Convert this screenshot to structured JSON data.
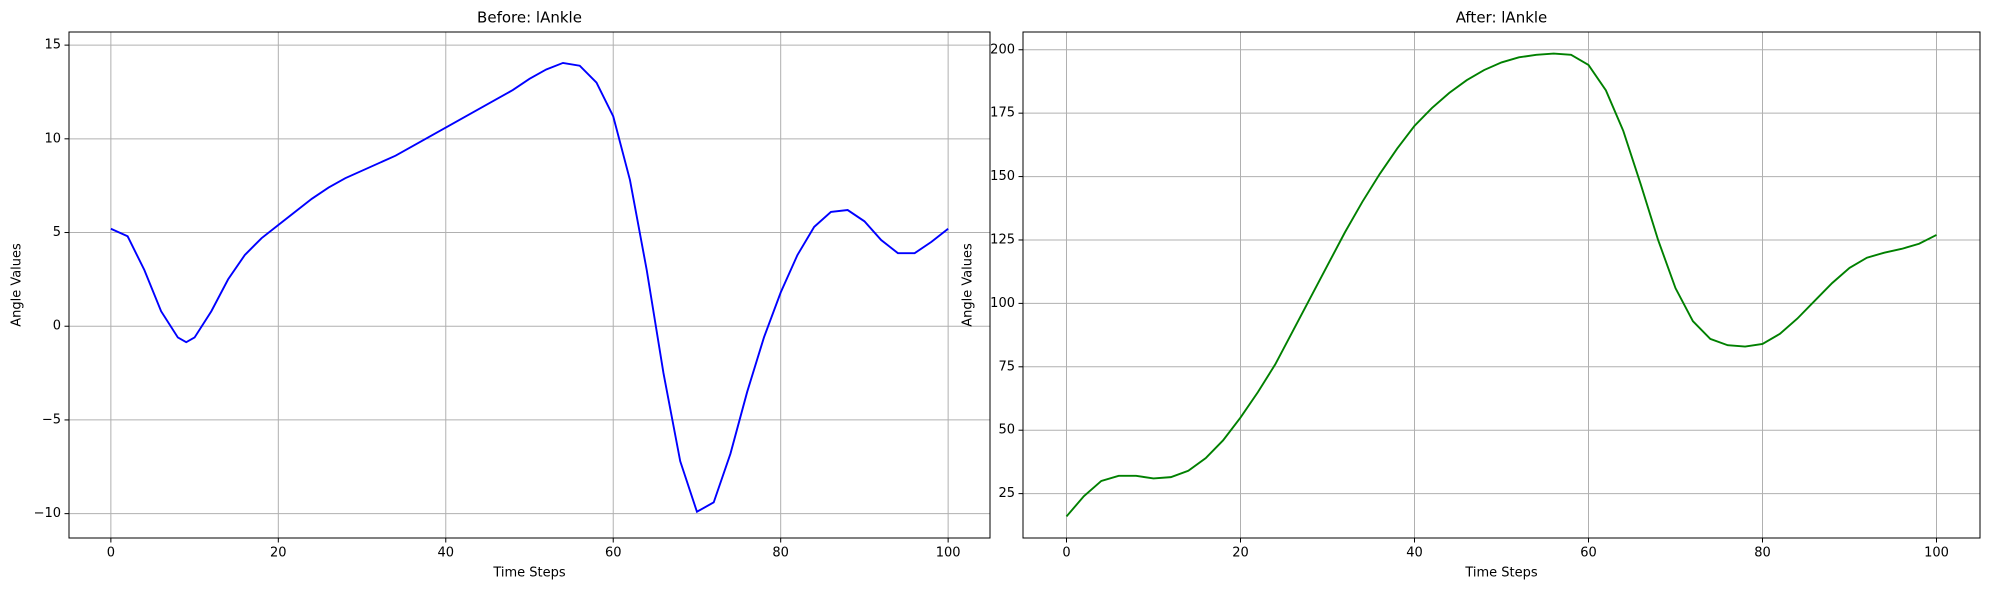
{
  "chart_data": [
    {
      "type": "line",
      "title": "Before: lAnkle",
      "x_label": "Time Steps",
      "y_label": "Angle Values",
      "color": "#0000ff",
      "grid": true,
      "x": [
        0,
        2,
        4,
        6,
        8,
        9,
        10,
        12,
        14,
        16,
        18,
        20,
        22,
        24,
        26,
        28,
        30,
        32,
        34,
        36,
        38,
        40,
        42,
        44,
        46,
        48,
        50,
        52,
        54,
        56,
        58,
        60,
        62,
        64,
        66,
        68,
        70,
        72,
        74,
        76,
        78,
        80,
        82,
        84,
        86,
        88,
        90,
        92,
        94,
        96,
        98,
        100
      ],
      "values": [
        5.2,
        4.8,
        3.0,
        0.8,
        -0.6,
        -0.85,
        -0.6,
        0.8,
        2.5,
        3.8,
        4.7,
        5.4,
        6.1,
        6.8,
        7.4,
        7.9,
        8.3,
        8.7,
        9.1,
        9.6,
        10.1,
        10.6,
        11.1,
        11.6,
        12.1,
        12.6,
        13.2,
        13.7,
        14.05,
        13.9,
        13.0,
        11.2,
        7.8,
        3.0,
        -2.5,
        -7.2,
        -9.9,
        -9.4,
        -6.8,
        -3.5,
        -0.6,
        1.8,
        3.8,
        5.3,
        6.1,
        6.2,
        5.6,
        4.6,
        3.9,
        3.9,
        4.5,
        5.2
      ],
      "xlim": [
        -5,
        105
      ],
      "ylim": [
        -11.3,
        15.7
      ],
      "xticks": [
        0,
        20,
        40,
        60,
        80,
        100
      ],
      "yticks": [
        {
          "value": -10,
          "label": "−10"
        },
        {
          "value": -5,
          "label": "−5"
        },
        0,
        5,
        10,
        15
      ]
    },
    {
      "type": "line",
      "title": "After: lAnkle",
      "x_label": "Time Steps",
      "y_label": "Angle Values",
      "color": "#008000",
      "grid": true,
      "x": [
        0,
        2,
        4,
        6,
        8,
        10,
        12,
        14,
        16,
        18,
        20,
        22,
        24,
        26,
        28,
        30,
        32,
        34,
        36,
        38,
        40,
        42,
        44,
        46,
        48,
        50,
        52,
        54,
        56,
        58,
        60,
        62,
        64,
        66,
        68,
        70,
        72,
        74,
        76,
        78,
        80,
        82,
        84,
        86,
        88,
        90,
        92,
        94,
        96,
        98,
        100
      ],
      "values": [
        16,
        24,
        30,
        32,
        32,
        31,
        31.5,
        34,
        39,
        46,
        55,
        65,
        76,
        89,
        102,
        115,
        128,
        140,
        151,
        161,
        170,
        177,
        183,
        188,
        192,
        195,
        197,
        198,
        198.5,
        198,
        194,
        184,
        168,
        147,
        125,
        106,
        93,
        86,
        83.5,
        83,
        84,
        88,
        94,
        101,
        108,
        114,
        118,
        120,
        121.5,
        123.5,
        127
      ],
      "xlim": [
        -5,
        105
      ],
      "ylim": [
        7.5,
        207
      ],
      "xticks": [
        0,
        20,
        40,
        60,
        80,
        100
      ],
      "yticks": [
        25,
        50,
        75,
        100,
        125,
        150,
        175,
        200
      ]
    }
  ]
}
